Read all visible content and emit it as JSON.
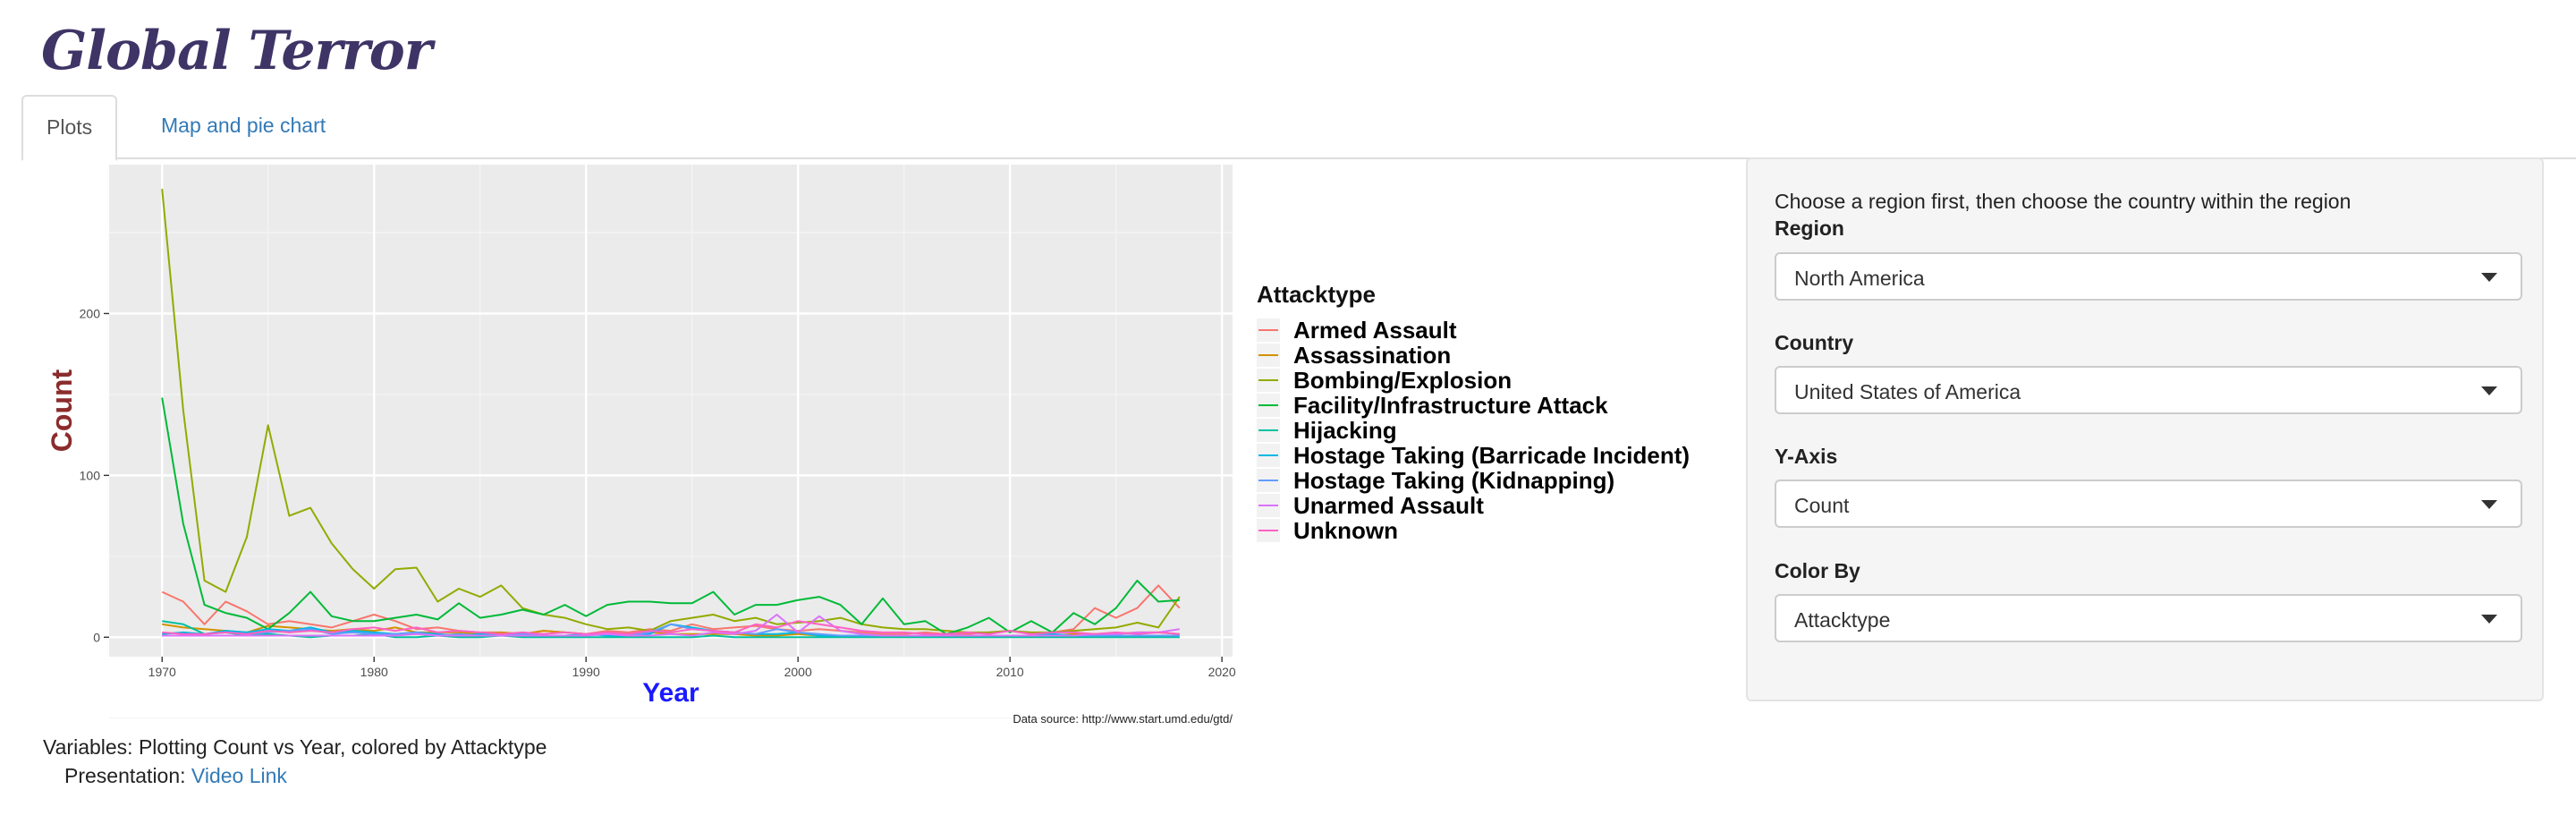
{
  "app": {
    "title": "Global Terror"
  },
  "tabs": [
    {
      "label": "Plots",
      "active": true
    },
    {
      "label": "Map and pie chart",
      "active": false
    }
  ],
  "chart_data": {
    "type": "line",
    "title": "",
    "xlabel": "Year",
    "ylabel": "Count",
    "xlim": [
      1967.5,
      2020.5
    ],
    "ylim": [
      -12,
      292
    ],
    "x_ticks": [
      1970,
      1980,
      1990,
      2000,
      2010,
      2020
    ],
    "y_ticks": [
      0,
      100,
      200
    ],
    "legend_title": "Attacktype",
    "legend_position": "right",
    "caption": "Data source: http://www.start.umd.edu/gtd/",
    "grid": true,
    "x": [
      1970,
      1971,
      1972,
      1973,
      1974,
      1975,
      1976,
      1977,
      1978,
      1979,
      1980,
      1981,
      1982,
      1983,
      1984,
      1985,
      1986,
      1987,
      1988,
      1989,
      1990,
      1991,
      1992,
      1993,
      1994,
      1995,
      1996,
      1997,
      1998,
      1999,
      2000,
      2001,
      2002,
      2003,
      2004,
      2005,
      2006,
      2007,
      2008,
      2009,
      2010,
      2011,
      2012,
      2013,
      2014,
      2015,
      2016,
      2017,
      2018
    ],
    "series": [
      {
        "name": "Armed Assault",
        "color": "#F8766D",
        "values": [
          28,
          22,
          8,
          22,
          16,
          8,
          10,
          8,
          6,
          10,
          14,
          10,
          5,
          6,
          4,
          3,
          3,
          2,
          4,
          3,
          2,
          4,
          3,
          5,
          4,
          8,
          5,
          6,
          7,
          5,
          4,
          5,
          4,
          3,
          2,
          2,
          3,
          2,
          2,
          3,
          4,
          2,
          3,
          5,
          18,
          12,
          18,
          32,
          18
        ]
      },
      {
        "name": "Assassination",
        "color": "#D39200",
        "values": [
          8,
          6,
          5,
          4,
          3,
          7,
          6,
          5,
          4,
          5,
          4,
          6,
          3,
          3,
          3,
          2,
          3,
          2,
          4,
          3,
          2,
          2,
          2,
          3,
          2,
          2,
          2,
          2,
          1,
          1,
          2,
          1,
          1,
          1,
          1,
          1,
          1,
          1,
          1,
          1,
          1,
          1,
          1,
          2,
          2,
          2,
          3,
          3,
          2
        ]
      },
      {
        "name": "Bombing/Explosion",
        "color": "#93AA00",
        "values": [
          277,
          140,
          35,
          28,
          62,
          131,
          75,
          80,
          58,
          42,
          30,
          42,
          43,
          22,
          30,
          25,
          32,
          18,
          14,
          12,
          8,
          5,
          6,
          4,
          10,
          12,
          14,
          10,
          12,
          8,
          9,
          10,
          12,
          8,
          6,
          5,
          5,
          4,
          3,
          3,
          4,
          3,
          3,
          4,
          5,
          6,
          9,
          6,
          25
        ]
      },
      {
        "name": "Facility/Infrastructure Attack",
        "color": "#00BA38",
        "values": [
          148,
          70,
          20,
          15,
          12,
          5,
          15,
          28,
          13,
          10,
          10,
          12,
          14,
          11,
          21,
          12,
          14,
          17,
          14,
          20,
          13,
          20,
          22,
          22,
          21,
          21,
          28,
          14,
          20,
          20,
          23,
          25,
          20,
          8,
          24,
          8,
          10,
          2,
          6,
          12,
          3,
          10,
          3,
          15,
          8,
          18,
          35,
          22,
          23
        ]
      },
      {
        "name": "Hijacking",
        "color": "#00C19F",
        "values": [
          10,
          8,
          2,
          3,
          1,
          2,
          1,
          0,
          1,
          1,
          2,
          0,
          0,
          1,
          0,
          0,
          1,
          0,
          0,
          0,
          0,
          0,
          0,
          0,
          0,
          0,
          1,
          0,
          0,
          0,
          0,
          0,
          0,
          0,
          0,
          0,
          0,
          0,
          0,
          0,
          0,
          0,
          0,
          0,
          0,
          0,
          0,
          0,
          0
        ]
      },
      {
        "name": "Hostage Taking (Barricade Incident)",
        "color": "#00B9E3",
        "values": [
          2,
          3,
          2,
          4,
          3,
          5,
          4,
          6,
          3,
          4,
          3,
          2,
          3,
          2,
          1,
          2,
          1,
          1,
          1,
          1,
          2,
          1,
          1,
          2,
          8,
          6,
          4,
          3,
          2,
          2,
          3,
          1,
          1,
          1,
          1,
          1,
          1,
          1,
          1,
          1,
          1,
          1,
          2,
          1,
          1,
          1,
          1,
          1,
          1
        ]
      },
      {
        "name": "Hostage Taking (Kidnapping)",
        "color": "#619CFF",
        "values": [
          1,
          1,
          2,
          3,
          2,
          3,
          4,
          5,
          2,
          3,
          2,
          2,
          3,
          1,
          2,
          1,
          1,
          2,
          1,
          1,
          1,
          2,
          1,
          3,
          8,
          5,
          4,
          3,
          2,
          5,
          3,
          2,
          1,
          1,
          1,
          1,
          1,
          1,
          1,
          1,
          1,
          1,
          1,
          1,
          1,
          1,
          1,
          1,
          1
        ]
      },
      {
        "name": "Unarmed Assault",
        "color": "#DB72FB",
        "values": [
          1,
          1,
          1,
          1,
          1,
          1,
          1,
          1,
          1,
          1,
          1,
          1,
          2,
          1,
          1,
          1,
          1,
          1,
          1,
          1,
          1,
          2,
          1,
          1,
          2,
          1,
          3,
          2,
          4,
          14,
          3,
          13,
          4,
          2,
          1,
          1,
          1,
          1,
          1,
          1,
          1,
          1,
          1,
          1,
          2,
          2,
          3,
          3,
          5
        ]
      },
      {
        "name": "Unknown",
        "color": "#FF61C3",
        "values": [
          3,
          2,
          2,
          3,
          2,
          4,
          3,
          4,
          3,
          5,
          6,
          4,
          6,
          3,
          4,
          3,
          2,
          3,
          2,
          3,
          2,
          3,
          2,
          4,
          3,
          5,
          4,
          3,
          8,
          6,
          10,
          8,
          6,
          4,
          3,
          3,
          2,
          2,
          3,
          2,
          4,
          2,
          3,
          3,
          2,
          3,
          2,
          3,
          2
        ]
      }
    ]
  },
  "footer": {
    "variables_text": "Variables: Plotting Count vs Year, colored by Attacktype",
    "presentation_label": "Presentation:",
    "presentation_link": "Video Link"
  },
  "panel": {
    "hint": "Choose a region first, then choose the country within the region",
    "region_label": "Region",
    "region_value": "North America",
    "country_label": "Country",
    "country_value": "United States of America",
    "yaxis_label": "Y-Axis",
    "yaxis_value": "Count",
    "colorby_label": "Color By",
    "colorby_value": "Attacktype"
  }
}
